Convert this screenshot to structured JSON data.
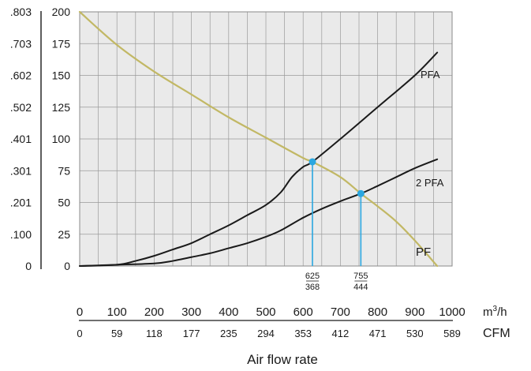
{
  "chart_data": {
    "type": "line",
    "xlabel": "Air flow rate",
    "x_axis_primary": {
      "unit_base": "m",
      "unit_sup": "3",
      "unit_tail": "/h",
      "ticks": [
        0,
        100,
        200,
        300,
        400,
        500,
        600,
        700,
        800,
        900,
        1000
      ],
      "range": [
        0,
        1000
      ]
    },
    "x_axis_secondary": {
      "unit": "CFM",
      "ticks": [
        "0",
        "59",
        "118",
        "177",
        "235",
        "294",
        "353",
        "412",
        "471",
        "530",
        "589"
      ]
    },
    "y_axis_right": {
      "ticks": [
        0,
        25,
        50,
        75,
        100,
        125,
        150,
        175,
        200
      ],
      "range": [
        0,
        200
      ]
    },
    "y_axis_left": {
      "ticks": [
        "0",
        ".100",
        ".201",
        ".301",
        ".401",
        ".502",
        ".602",
        ".703",
        ".803"
      ]
    },
    "grid": true,
    "series": [
      {
        "name": "PFA",
        "color": "#1a1a1a",
        "x": [
          0,
          100,
          150,
          200,
          250,
          300,
          350,
          400,
          450,
          500,
          540,
          570,
          600,
          625,
          700,
          800,
          900,
          960
        ],
        "y": [
          0,
          1,
          4,
          8,
          13,
          18,
          25,
          32,
          40,
          48,
          58,
          70,
          78,
          82,
          100,
          125,
          150,
          168
        ]
      },
      {
        "name": "2 PFA",
        "color": "#1a1a1a",
        "x": [
          0,
          100,
          200,
          250,
          300,
          350,
          400,
          450,
          500,
          540,
          600,
          650,
          700,
          755,
          800,
          850,
          900,
          960
        ],
        "y": [
          0,
          1,
          2,
          4,
          7,
          10,
          14,
          18,
          23,
          28,
          38,
          45,
          51,
          57,
          63,
          70,
          77,
          84
        ]
      },
      {
        "name": "PF",
        "color": "#c2b865",
        "x": [
          0,
          100,
          200,
          300,
          400,
          500,
          600,
          625,
          700,
          755,
          800,
          850,
          900,
          960
        ],
        "y": [
          200,
          174,
          153,
          135,
          117,
          101,
          85,
          82,
          70,
          57,
          47,
          35,
          20,
          0
        ]
      }
    ],
    "operating_points": [
      {
        "x": 625,
        "y": 82,
        "label_top": "625",
        "label_bottom": "368",
        "color": "#2aa7e0"
      },
      {
        "x": 755,
        "y": 57,
        "label_top": "755",
        "label_bottom": "444",
        "color": "#2aa7e0"
      }
    ]
  }
}
